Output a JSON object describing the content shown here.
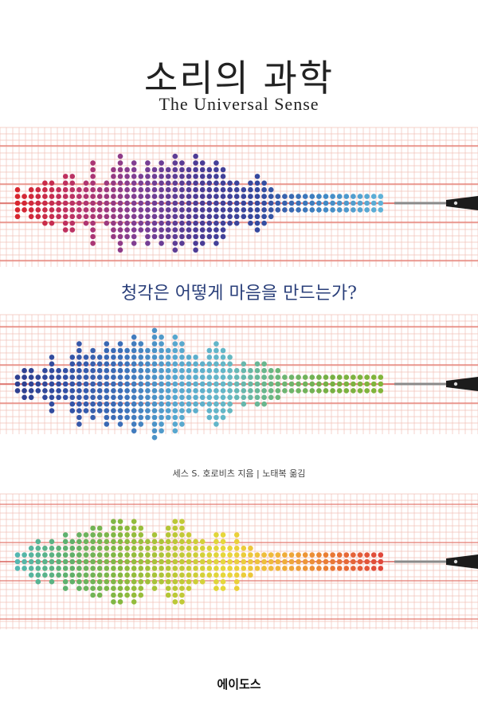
{
  "cover": {
    "title": "소리의 과학",
    "subtitle": "The Universal Sense",
    "tagline": "청각은 어떻게 마음을 만드는가?",
    "credits": "세스 S. 호로비츠 지음 | 노태복 옮김",
    "publisher": "에이도스"
  }
}
